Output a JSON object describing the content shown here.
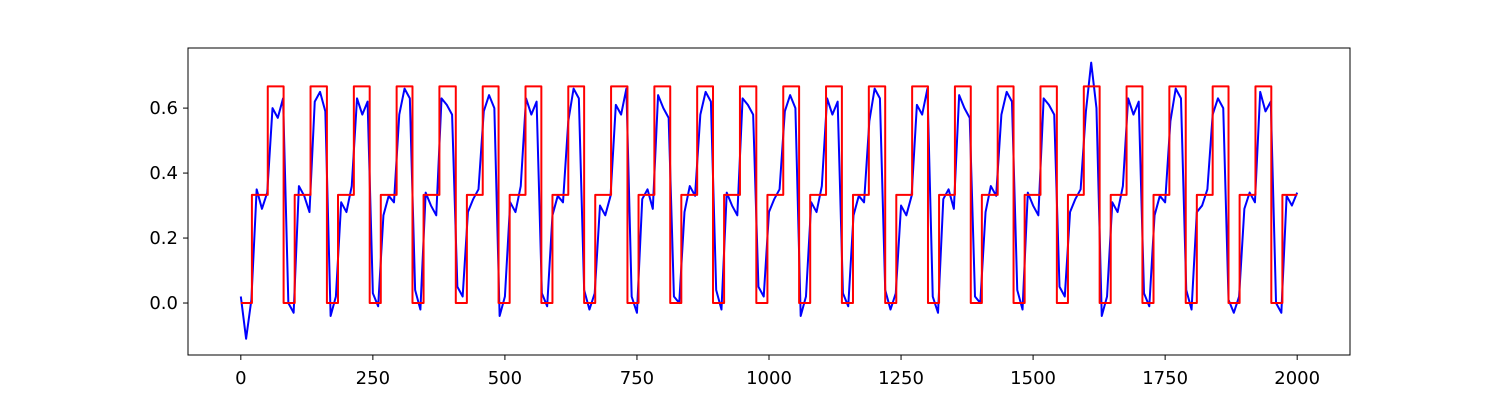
{
  "chart_data": {
    "type": "line",
    "xlim": [
      -100,
      2100
    ],
    "ylim": [
      -0.16,
      0.785
    ],
    "xticks": [
      0,
      250,
      500,
      750,
      1000,
      1250,
      1500,
      1750,
      2000
    ],
    "yticks": [
      {
        "value": 0,
        "label": "0.0"
      },
      0.2,
      0.4,
      0.6
    ],
    "series": [
      {
        "color": "#0000ff",
        "x": [
          0,
          10,
          20,
          30,
          40,
          50,
          60,
          70,
          80,
          90,
          100,
          110,
          120,
          130,
          140,
          150,
          160,
          170,
          180,
          190,
          200,
          210,
          220,
          230,
          240,
          250,
          260,
          270,
          280,
          290,
          300,
          310,
          320,
          330,
          340,
          350,
          360,
          370,
          380,
          390,
          400,
          410,
          420,
          430,
          440,
          450,
          460,
          470,
          480,
          490,
          500,
          510,
          520,
          530,
          540,
          550,
          560,
          570,
          580,
          590,
          600,
          610,
          620,
          630,
          640,
          650,
          660,
          670,
          680,
          690,
          700,
          710,
          720,
          730,
          740,
          750,
          760,
          770,
          780,
          790,
          800,
          810,
          820,
          830,
          840,
          850,
          860,
          870,
          880,
          890,
          900,
          910,
          920,
          930,
          940,
          950,
          960,
          970,
          980,
          990,
          1000,
          1010,
          1020,
          1030,
          1040,
          1050,
          1060,
          1070,
          1080,
          1090,
          1100,
          1110,
          1120,
          1130,
          1140,
          1150,
          1160,
          1170,
          1180,
          1190,
          1200,
          1210,
          1220,
          1230,
          1240,
          1250,
          1260,
          1270,
          1280,
          1290,
          1300,
          1310,
          1320,
          1330,
          1340,
          1350,
          1360,
          1370,
          1380,
          1390,
          1400,
          1410,
          1420,
          1430,
          1440,
          1450,
          1460,
          1470,
          1480,
          1490,
          1500,
          1510,
          1520,
          1530,
          1540,
          1550,
          1560,
          1570,
          1580,
          1590,
          1600,
          1610,
          1620,
          1630,
          1640,
          1650,
          1660,
          1670,
          1680,
          1690,
          1700,
          1710,
          1720,
          1730,
          1740,
          1750,
          1760,
          1770,
          1780,
          1790,
          1800,
          1810,
          1820,
          1830,
          1840,
          1850,
          1860,
          1870,
          1880,
          1890,
          1900,
          1910,
          1920,
          1930,
          1940,
          1950,
          1960,
          1970,
          1980,
          1990,
          2000
        ],
        "values": [
          0.02,
          -0.11,
          0.01,
          0.35,
          0.29,
          0.34,
          0.6,
          0.57,
          0.63,
          0.0,
          -0.03,
          0.36,
          0.33,
          0.28,
          0.62,
          0.65,
          0.59,
          -0.04,
          0.02,
          0.31,
          0.28,
          0.36,
          0.63,
          0.58,
          0.62,
          0.03,
          -0.01,
          0.27,
          0.33,
          0.31,
          0.58,
          0.66,
          0.63,
          0.04,
          -0.02,
          0.34,
          0.3,
          0.27,
          0.63,
          0.61,
          0.58,
          0.05,
          0.02,
          0.28,
          0.32,
          0.35,
          0.59,
          0.64,
          0.6,
          -0.04,
          0.02,
          0.31,
          0.28,
          0.36,
          0.63,
          0.58,
          0.62,
          0.03,
          -0.01,
          0.27,
          0.33,
          0.31,
          0.56,
          0.66,
          0.63,
          0.04,
          -0.02,
          0.03,
          0.3,
          0.27,
          0.33,
          0.61,
          0.58,
          0.66,
          0.02,
          -0.03,
          0.32,
          0.35,
          0.29,
          0.64,
          0.6,
          0.57,
          0.02,
          0.0,
          0.28,
          0.36,
          0.33,
          0.58,
          0.65,
          0.62,
          0.04,
          -0.02,
          0.34,
          0.3,
          0.27,
          0.63,
          0.61,
          0.58,
          0.05,
          0.02,
          0.28,
          0.32,
          0.35,
          0.59,
          0.64,
          0.6,
          -0.04,
          0.02,
          0.31,
          0.28,
          0.36,
          0.63,
          0.58,
          0.62,
          0.03,
          -0.01,
          0.27,
          0.33,
          0.31,
          0.56,
          0.66,
          0.63,
          0.04,
          -0.02,
          0.03,
          0.3,
          0.27,
          0.33,
          0.61,
          0.58,
          0.66,
          0.02,
          -0.03,
          0.32,
          0.35,
          0.29,
          0.64,
          0.6,
          0.57,
          0.02,
          0.0,
          0.28,
          0.36,
          0.33,
          0.58,
          0.65,
          0.62,
          0.04,
          -0.02,
          0.34,
          0.3,
          0.27,
          0.63,
          0.61,
          0.58,
          0.05,
          0.02,
          0.28,
          0.32,
          0.35,
          0.59,
          0.74,
          0.6,
          -0.04,
          0.02,
          0.31,
          0.28,
          0.36,
          0.63,
          0.58,
          0.62,
          0.03,
          -0.01,
          0.27,
          0.33,
          0.31,
          0.56,
          0.66,
          0.63,
          0.04,
          -0.02,
          0.28,
          0.3,
          0.35,
          0.58,
          0.63,
          0.6,
          0.01,
          -0.03,
          0.02,
          0.29,
          0.34,
          0.31,
          0.65,
          0.59,
          0.62,
          0.0,
          -0.03,
          0.33,
          0.3,
          0.34
        ]
      },
      {
        "color": "#ff0000",
        "x": [
          0,
          21,
          21,
          51,
          51,
          81,
          81,
          102,
          102,
          132,
          132,
          163,
          163,
          184,
          184,
          214,
          214,
          244,
          244,
          265,
          265,
          295,
          295,
          325,
          325,
          346,
          346,
          376,
          376,
          407,
          407,
          428,
          428,
          458,
          458,
          488,
          488,
          509,
          509,
          539,
          539,
          569,
          569,
          590,
          590,
          620,
          620,
          650,
          650,
          671,
          671,
          701,
          701,
          732,
          732,
          753,
          753,
          783,
          783,
          813,
          813,
          834,
          834,
          864,
          864,
          894,
          894,
          915,
          915,
          945,
          945,
          976,
          976,
          997,
          997,
          1027,
          1027,
          1057,
          1057,
          1078,
          1078,
          1108,
          1108,
          1138,
          1138,
          1159,
          1159,
          1189,
          1189,
          1220,
          1220,
          1241,
          1241,
          1271,
          1271,
          1301,
          1301,
          1322,
          1322,
          1352,
          1352,
          1382,
          1382,
          1403,
          1403,
          1433,
          1433,
          1463,
          1463,
          1484,
          1484,
          1514,
          1514,
          1545,
          1545,
          1566,
          1566,
          1596,
          1596,
          1626,
          1626,
          1647,
          1647,
          1677,
          1677,
          1707,
          1707,
          1728,
          1728,
          1758,
          1758,
          1789,
          1789,
          1810,
          1810,
          1840,
          1840,
          1870,
          1870,
          1891,
          1891,
          1921,
          1921,
          1951,
          1951,
          1972,
          1972,
          2000
        ],
        "values": [
          0,
          0,
          0.333,
          0.333,
          0.667,
          0.667,
          0,
          0,
          0.333,
          0.333,
          0.667,
          0.667,
          0,
          0,
          0.333,
          0.333,
          0.667,
          0.667,
          0,
          0,
          0.333,
          0.333,
          0.667,
          0.667,
          0,
          0,
          0.333,
          0.333,
          0.667,
          0.667,
          0,
          0,
          0.333,
          0.333,
          0.667,
          0.667,
          0,
          0,
          0.333,
          0.333,
          0.667,
          0.667,
          0,
          0,
          0.333,
          0.333,
          0.667,
          0.667,
          0,
          0,
          0.333,
          0.333,
          0.667,
          0.667,
          0,
          0,
          0.333,
          0.333,
          0.667,
          0.667,
          0,
          0,
          0.333,
          0.333,
          0.667,
          0.667,
          0,
          0,
          0.333,
          0.333,
          0.667,
          0.667,
          0,
          0,
          0.333,
          0.333,
          0.667,
          0.667,
          0,
          0,
          0.333,
          0.333,
          0.667,
          0.667,
          0,
          0,
          0.333,
          0.333,
          0.667,
          0.667,
          0,
          0,
          0.333,
          0.333,
          0.667,
          0.667,
          0,
          0,
          0.333,
          0.333,
          0.667,
          0.667,
          0,
          0,
          0.333,
          0.333,
          0.667,
          0.667,
          0,
          0,
          0.333,
          0.333,
          0.667,
          0.667,
          0,
          0,
          0.333,
          0.333,
          0.667,
          0.667,
          0,
          0,
          0.333,
          0.333,
          0.667,
          0.667,
          0,
          0,
          0.333,
          0.333,
          0.667,
          0.667,
          0,
          0,
          0.333,
          0.333,
          0.667,
          0.667,
          0,
          0,
          0.333,
          0.333,
          0.667,
          0.667,
          0,
          0,
          0.333,
          0.333
        ]
      }
    ]
  }
}
